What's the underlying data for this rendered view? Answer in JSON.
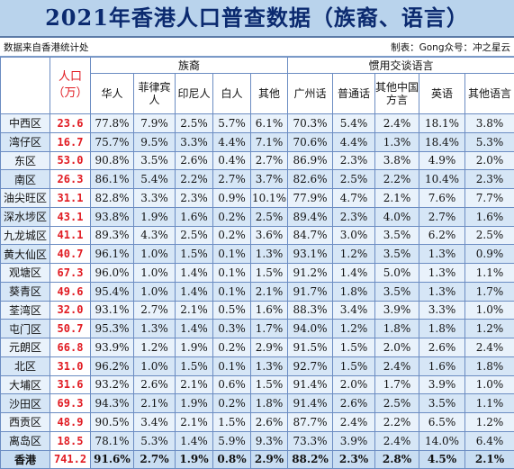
{
  "title": "2021年香港人口普查数据（族裔、语言）",
  "source_note": "数据来自香港统计处",
  "credit": "制表：Gong众号：冲之星云",
  "header": {
    "population": "人口（万）",
    "ethnicity_group": "族裔",
    "language_group": "惯用交谈语言",
    "ethnicity_cols": [
      "华人",
      "菲律宾人",
      "印尼人",
      "白人",
      "其他"
    ],
    "language_cols": [
      "广州话",
      "普通话",
      "其他中国方言",
      "英语",
      "其他语言"
    ]
  },
  "rows": [
    {
      "district": "中西区",
      "population": "23.6",
      "eth": [
        "77.8%",
        "7.9%",
        "2.5%",
        "5.7%",
        "6.1%"
      ],
      "lang": [
        "70.3%",
        "5.4%",
        "2.4%",
        "18.1%",
        "3.8%"
      ]
    },
    {
      "district": "湾仔区",
      "population": "16.7",
      "eth": [
        "75.7%",
        "9.5%",
        "3.3%",
        "4.4%",
        "7.1%"
      ],
      "lang": [
        "70.6%",
        "4.4%",
        "1.3%",
        "18.4%",
        "5.3%"
      ]
    },
    {
      "district": "东区",
      "population": "53.0",
      "eth": [
        "90.8%",
        "3.5%",
        "2.6%",
        "0.4%",
        "2.7%"
      ],
      "lang": [
        "86.9%",
        "2.3%",
        "3.8%",
        "4.9%",
        "2.0%"
      ]
    },
    {
      "district": "南区",
      "population": "26.3",
      "eth": [
        "86.1%",
        "5.4%",
        "2.2%",
        "2.7%",
        "3.7%"
      ],
      "lang": [
        "82.6%",
        "2.5%",
        "2.2%",
        "10.4%",
        "2.3%"
      ]
    },
    {
      "district": "油尖旺区",
      "population": "31.1",
      "eth": [
        "82.8%",
        "3.3%",
        "2.3%",
        "0.9%",
        "10.1%"
      ],
      "lang": [
        "77.9%",
        "4.7%",
        "2.1%",
        "7.6%",
        "7.7%"
      ]
    },
    {
      "district": "深水埗区",
      "population": "43.1",
      "eth": [
        "93.8%",
        "1.9%",
        "1.6%",
        "0.2%",
        "2.5%"
      ],
      "lang": [
        "89.4%",
        "2.3%",
        "4.0%",
        "2.7%",
        "1.6%"
      ]
    },
    {
      "district": "九龙城区",
      "population": "41.1",
      "eth": [
        "89.3%",
        "4.3%",
        "2.5%",
        "0.2%",
        "3.6%"
      ],
      "lang": [
        "84.7%",
        "3.0%",
        "3.5%",
        "6.2%",
        "2.5%"
      ]
    },
    {
      "district": "黄大仙区",
      "population": "40.7",
      "eth": [
        "96.1%",
        "1.0%",
        "1.5%",
        "0.1%",
        "1.3%"
      ],
      "lang": [
        "93.1%",
        "1.2%",
        "3.5%",
        "1.3%",
        "0.9%"
      ]
    },
    {
      "district": "观塘区",
      "population": "67.3",
      "eth": [
        "96.0%",
        "1.0%",
        "1.4%",
        "0.1%",
        "1.5%"
      ],
      "lang": [
        "91.2%",
        "1.4%",
        "5.0%",
        "1.3%",
        "1.1%"
      ]
    },
    {
      "district": "葵青区",
      "population": "49.6",
      "eth": [
        "95.4%",
        "1.0%",
        "1.4%",
        "0.1%",
        "2.1%"
      ],
      "lang": [
        "91.7%",
        "1.8%",
        "3.5%",
        "1.3%",
        "1.7%"
      ]
    },
    {
      "district": "荃湾区",
      "population": "32.0",
      "eth": [
        "93.1%",
        "2.7%",
        "2.1%",
        "0.5%",
        "1.6%"
      ],
      "lang": [
        "88.3%",
        "3.4%",
        "3.9%",
        "3.3%",
        "1.0%"
      ]
    },
    {
      "district": "屯门区",
      "population": "50.7",
      "eth": [
        "95.3%",
        "1.3%",
        "1.4%",
        "0.3%",
        "1.7%"
      ],
      "lang": [
        "94.0%",
        "1.2%",
        "1.8%",
        "1.8%",
        "1.2%"
      ]
    },
    {
      "district": "元朗区",
      "population": "66.8",
      "eth": [
        "93.9%",
        "1.2%",
        "1.9%",
        "0.2%",
        "2.9%"
      ],
      "lang": [
        "91.5%",
        "1.5%",
        "2.0%",
        "2.6%",
        "2.4%"
      ]
    },
    {
      "district": "北区",
      "population": "31.0",
      "eth": [
        "96.2%",
        "1.0%",
        "1.5%",
        "0.1%",
        "1.3%"
      ],
      "lang": [
        "92.7%",
        "1.5%",
        "2.4%",
        "1.6%",
        "1.8%"
      ]
    },
    {
      "district": "大埔区",
      "population": "31.6",
      "eth": [
        "93.2%",
        "2.6%",
        "2.1%",
        "0.6%",
        "1.5%"
      ],
      "lang": [
        "91.4%",
        "2.0%",
        "1.7%",
        "3.9%",
        "1.0%"
      ]
    },
    {
      "district": "沙田区",
      "population": "69.3",
      "eth": [
        "94.3%",
        "2.1%",
        "1.9%",
        "0.2%",
        "1.8%"
      ],
      "lang": [
        "91.4%",
        "2.6%",
        "2.5%",
        "3.5%",
        "1.1%"
      ]
    },
    {
      "district": "西贡区",
      "population": "48.9",
      "eth": [
        "90.5%",
        "3.4%",
        "2.1%",
        "1.5%",
        "2.6%"
      ],
      "lang": [
        "87.7%",
        "2.4%",
        "2.2%",
        "6.5%",
        "1.2%"
      ]
    },
    {
      "district": "离岛区",
      "population": "18.5",
      "eth": [
        "78.1%",
        "5.3%",
        "1.4%",
        "5.9%",
        "9.3%"
      ],
      "lang": [
        "73.3%",
        "3.9%",
        "2.4%",
        "14.0%",
        "6.4%"
      ]
    }
  ],
  "total": {
    "district": "香港",
    "population": "741.2",
    "eth": [
      "91.6%",
      "2.7%",
      "1.9%",
      "0.8%",
      "2.9%"
    ],
    "lang": [
      "88.2%",
      "2.3%",
      "2.8%",
      "4.5%",
      "2.1%"
    ]
  },
  "colors": {
    "title_bg": "#b9d3ec",
    "title_text": "#0b2a6f",
    "population_text": "#e11b22",
    "row_bg_a": "#e9f2fb",
    "row_bg_b": "#d6e6f6",
    "grid": "#6b8cc2"
  }
}
